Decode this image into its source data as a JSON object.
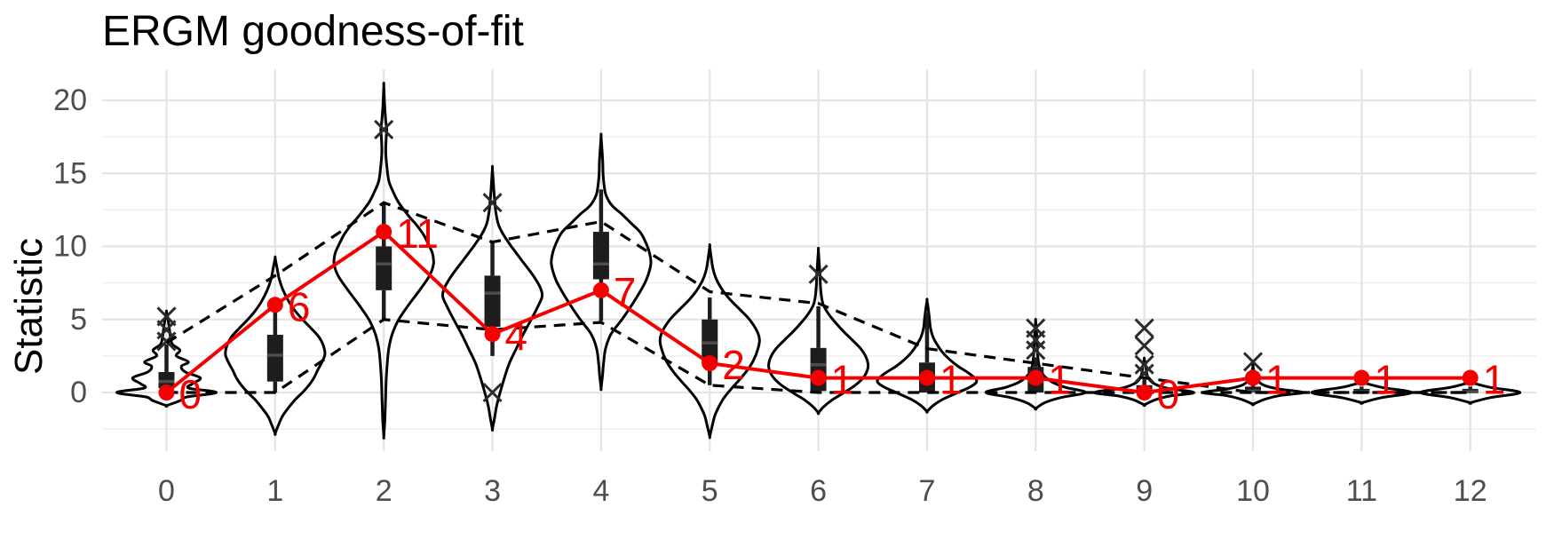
{
  "title": "ERGM goodness-of-fit",
  "y_axis_label": "Statistic",
  "colors": {
    "observed_red": "#F40000",
    "line_black": "#000000",
    "box_fill": "#1D1D1D",
    "median_gray": "#4D4D4D",
    "outlier_gray": "#2B2B2B",
    "grid_major": "#E4E4E4",
    "grid_minor": "#EFEFEF",
    "tick_text": "#4D4D4D",
    "background": "#FFFFFF"
  },
  "chart_data": {
    "type": "violin",
    "subtype": "ergm-gof: violins + boxplots + dashed 95% simulation band + observed line",
    "title": "ERGM goodness-of-fit",
    "xlabel": "",
    "ylabel": "Statistic",
    "categories": [
      "0",
      "1",
      "2",
      "3",
      "4",
      "5",
      "6",
      "7",
      "8",
      "9",
      "10",
      "11",
      "12"
    ],
    "y_ticks": [
      0,
      5,
      10,
      15,
      20
    ],
    "y_minor_ticks": [
      -2.5,
      2.5,
      7.5,
      12.5,
      17.5
    ],
    "ylim": [
      -3.6,
      21.8
    ],
    "grid": true,
    "legend_position": "none",
    "series": [
      {
        "name": "observed-statistic",
        "style": "solid red line with points and text labels",
        "values": [
          0,
          6,
          11,
          4,
          7,
          2,
          1,
          1,
          1,
          0,
          1,
          1,
          1
        ],
        "labels": [
          "0",
          "6",
          "11",
          "4",
          "7",
          "2",
          "1",
          "1",
          "1",
          "0",
          "1",
          "1",
          "1"
        ]
      },
      {
        "name": "upper-quantile-dashed",
        "style": "black dashed line",
        "values": [
          3.4,
          8,
          13,
          10.3,
          11.7,
          6.9,
          6.1,
          3,
          2,
          1,
          0,
          0,
          0
        ]
      },
      {
        "name": "lower-quantile-dashed",
        "style": "black dashed line",
        "values": [
          0,
          0,
          5,
          4.3,
          4.8,
          0.5,
          0,
          0,
          0,
          0,
          0,
          0,
          0
        ]
      }
    ],
    "boxplots": [
      {
        "q1": 0.3,
        "median": 0.75,
        "q3": 1.4,
        "lo": 0,
        "hi": 3.3,
        "outliers": [
          3.5,
          4.3,
          5.2
        ]
      },
      {
        "q1": 0.75,
        "median": 2.55,
        "q3": 3.95,
        "lo": 0,
        "hi": 5.5,
        "outliers": []
      },
      {
        "q1": 7,
        "median": 8.8,
        "q3": 10,
        "lo": 5,
        "hi": 13,
        "outliers": [
          18
        ]
      },
      {
        "q1": 4.5,
        "median": 6.8,
        "q3": 8,
        "lo": 2.5,
        "hi": 10.3,
        "outliers": [
          13,
          0
        ]
      },
      {
        "q1": 7.75,
        "median": 8.8,
        "q3": 11,
        "lo": 4.9,
        "hi": 13.9,
        "outliers": []
      },
      {
        "q1": 2,
        "median": 3.4,
        "q3": 5,
        "lo": 0.5,
        "hi": 6.5,
        "outliers": []
      },
      {
        "q1": 0.1,
        "median": 1.9,
        "q3": 3.05,
        "lo": 0,
        "hi": 5.9,
        "outliers": [
          8.1
        ]
      },
      {
        "q1": 0,
        "median": 1,
        "q3": 2.05,
        "lo": 0,
        "hi": 5.5,
        "outliers": []
      },
      {
        "q1": 0,
        "median": 0.75,
        "q3": 1.75,
        "lo": 0,
        "hi": 2.4,
        "outliers": [
          2.9,
          3.6,
          4.4
        ]
      },
      {
        "q1": 0,
        "median": 0.1,
        "q3": 0.5,
        "lo": 0,
        "hi": 0.9,
        "outliers": [
          1.3,
          1.9,
          3.2,
          4.4
        ]
      },
      {
        "q1": 0,
        "median": 0.1,
        "q3": 0.4,
        "lo": 0,
        "hi": 0.7,
        "outliers": [
          2.1
        ]
      },
      {
        "q1": 0,
        "median": 0.05,
        "q3": 0.25,
        "lo": 0,
        "hi": 0.4,
        "outliers": []
      },
      {
        "q1": 0,
        "median": 0.05,
        "q3": 0.25,
        "lo": 0,
        "hi": 0.4,
        "outliers": []
      }
    ],
    "violin_profiles": [
      [
        [
          -0.9,
          0
        ],
        [
          -0.55,
          0.28
        ],
        [
          -0.3,
          0.42
        ],
        [
          0,
          1
        ],
        [
          0.3,
          0.45
        ],
        [
          0.6,
          0.52
        ],
        [
          1,
          0.68
        ],
        [
          1.4,
          0.38
        ],
        [
          1.8,
          0.3
        ],
        [
          2.1,
          0.44
        ],
        [
          2.5,
          0.2
        ],
        [
          2.9,
          0.27
        ],
        [
          3.3,
          0.12
        ],
        [
          3.8,
          0.08
        ],
        [
          4.3,
          0.06
        ],
        [
          4.8,
          0.04
        ],
        [
          5.5,
          0
        ]
      ],
      [
        [
          -2.8,
          0
        ],
        [
          -2.2,
          0.07
        ],
        [
          -1.6,
          0.15
        ],
        [
          -1,
          0.28
        ],
        [
          -0.5,
          0.4
        ],
        [
          0,
          0.55
        ],
        [
          0.5,
          0.68
        ],
        [
          1,
          0.78
        ],
        [
          1.5,
          0.85
        ],
        [
          2,
          0.93
        ],
        [
          2.6,
          1
        ],
        [
          3.2,
          0.97
        ],
        [
          3.8,
          0.88
        ],
        [
          4.4,
          0.72
        ],
        [
          5,
          0.55
        ],
        [
          5.6,
          0.4
        ],
        [
          6.2,
          0.28
        ],
        [
          7,
          0.16
        ],
        [
          7.8,
          0.08
        ],
        [
          8.5,
          0.04
        ],
        [
          9.2,
          0
        ]
      ],
      [
        [
          -3,
          0
        ],
        [
          -2,
          0.02
        ],
        [
          -1,
          0.03
        ],
        [
          0,
          0.04
        ],
        [
          1,
          0.05
        ],
        [
          2,
          0.07
        ],
        [
          3,
          0.1
        ],
        [
          4,
          0.17
        ],
        [
          5,
          0.3
        ],
        [
          6,
          0.5
        ],
        [
          7,
          0.72
        ],
        [
          8,
          0.92
        ],
        [
          8.8,
          1
        ],
        [
          9.5,
          0.98
        ],
        [
          10,
          0.92
        ],
        [
          10.8,
          0.8
        ],
        [
          11.5,
          0.65
        ],
        [
          12,
          0.52
        ],
        [
          13,
          0.3
        ],
        [
          13.8,
          0.18
        ],
        [
          14.5,
          0.1
        ],
        [
          15.5,
          0.06
        ],
        [
          16.5,
          0.04
        ],
        [
          17.5,
          0.05
        ],
        [
          18,
          0.06
        ],
        [
          18.6,
          0.04
        ],
        [
          19.5,
          0.02
        ],
        [
          21,
          0
        ]
      ],
      [
        [
          -2.5,
          0
        ],
        [
          -1.8,
          0.04
        ],
        [
          -1,
          0.08
        ],
        [
          -0.3,
          0.13
        ],
        [
          0.3,
          0.18
        ],
        [
          1,
          0.24
        ],
        [
          2,
          0.34
        ],
        [
          3,
          0.48
        ],
        [
          4,
          0.62
        ],
        [
          5,
          0.78
        ],
        [
          6,
          0.93
        ],
        [
          6.6,
          1
        ],
        [
          7.2,
          0.96
        ],
        [
          8,
          0.82
        ],
        [
          9,
          0.6
        ],
        [
          10,
          0.38
        ],
        [
          10.8,
          0.22
        ],
        [
          11.5,
          0.12
        ],
        [
          12.3,
          0.07
        ],
        [
          13,
          0.05
        ],
        [
          13.8,
          0.03
        ],
        [
          15.3,
          0
        ]
      ],
      [
        [
          0.3,
          0
        ],
        [
          1.2,
          0.03
        ],
        [
          2,
          0.05
        ],
        [
          3,
          0.09
        ],
        [
          4,
          0.2
        ],
        [
          5,
          0.42
        ],
        [
          6,
          0.62
        ],
        [
          7,
          0.8
        ],
        [
          7.8,
          0.92
        ],
        [
          8.8,
          1
        ],
        [
          9.6,
          0.97
        ],
        [
          10.4,
          0.88
        ],
        [
          11,
          0.78
        ],
        [
          11.6,
          0.6
        ],
        [
          12.2,
          0.42
        ],
        [
          12.8,
          0.22
        ],
        [
          13.5,
          0.1
        ],
        [
          14.2,
          0.06
        ],
        [
          15,
          0.04
        ],
        [
          16,
          0.03
        ],
        [
          17.5,
          0
        ]
      ],
      [
        [
          -3,
          0
        ],
        [
          -2.3,
          0.05
        ],
        [
          -1.6,
          0.1
        ],
        [
          -1,
          0.18
        ],
        [
          -0.4,
          0.28
        ],
        [
          0.2,
          0.42
        ],
        [
          0.8,
          0.58
        ],
        [
          1.5,
          0.75
        ],
        [
          2.2,
          0.88
        ],
        [
          3,
          0.97
        ],
        [
          3.6,
          1
        ],
        [
          4.2,
          0.95
        ],
        [
          5,
          0.8
        ],
        [
          5.7,
          0.6
        ],
        [
          6.4,
          0.4
        ],
        [
          7,
          0.26
        ],
        [
          7.7,
          0.14
        ],
        [
          8.4,
          0.07
        ],
        [
          9,
          0.04
        ],
        [
          10,
          0
        ]
      ],
      [
        [
          -1.4,
          0
        ],
        [
          -1,
          0.1
        ],
        [
          -0.5,
          0.28
        ],
        [
          0,
          0.52
        ],
        [
          0.6,
          0.78
        ],
        [
          1.2,
          0.94
        ],
        [
          1.8,
          1
        ],
        [
          2.4,
          0.96
        ],
        [
          3,
          0.85
        ],
        [
          3.6,
          0.68
        ],
        [
          4.2,
          0.5
        ],
        [
          4.8,
          0.34
        ],
        [
          5.4,
          0.2
        ],
        [
          6,
          0.1
        ],
        [
          6.6,
          0.06
        ],
        [
          7.4,
          0.04
        ],
        [
          8.2,
          0.03
        ],
        [
          9.7,
          0
        ]
      ],
      [
        [
          -1.3,
          0
        ],
        [
          -0.9,
          0.12
        ],
        [
          -0.5,
          0.3
        ],
        [
          0,
          0.62
        ],
        [
          0.4,
          0.88
        ],
        [
          0.8,
          1
        ],
        [
          1.3,
          0.85
        ],
        [
          1.8,
          0.62
        ],
        [
          2.3,
          0.44
        ],
        [
          2.8,
          0.3
        ],
        [
          3.3,
          0.2
        ],
        [
          3.8,
          0.12
        ],
        [
          4.4,
          0.07
        ],
        [
          5,
          0.05
        ],
        [
          5.6,
          0.03
        ],
        [
          6.3,
          0
        ]
      ],
      [
        [
          -1.1,
          0
        ],
        [
          -0.7,
          0.18
        ],
        [
          -0.35,
          0.5
        ],
        [
          0,
          1
        ],
        [
          0.35,
          0.6
        ],
        [
          0.7,
          0.34
        ],
        [
          1.1,
          0.18
        ],
        [
          1.5,
          0.1
        ],
        [
          2,
          0.06
        ],
        [
          2.6,
          0.04
        ],
        [
          3.2,
          0.03
        ],
        [
          4,
          0.02
        ],
        [
          4.9,
          0
        ]
      ],
      [
        [
          -0.85,
          0
        ],
        [
          -0.5,
          0.22
        ],
        [
          -0.25,
          0.5
        ],
        [
          0,
          1
        ],
        [
          0.3,
          0.45
        ],
        [
          0.6,
          0.2
        ],
        [
          0.9,
          0.1
        ],
        [
          1.3,
          0.05
        ],
        [
          1.8,
          0.03
        ],
        [
          2.3,
          0
        ]
      ],
      [
        [
          -0.8,
          0
        ],
        [
          -0.45,
          0.25
        ],
        [
          -0.2,
          0.55
        ],
        [
          0,
          1
        ],
        [
          0.25,
          0.5
        ],
        [
          0.5,
          0.22
        ],
        [
          0.8,
          0.1
        ],
        [
          1.2,
          0.04
        ],
        [
          1.8,
          0
        ]
      ],
      [
        [
          -0.7,
          0
        ],
        [
          -0.35,
          0.4
        ],
        [
          0,
          1
        ],
        [
          0.35,
          0.4
        ],
        [
          0.7,
          0
        ]
      ],
      [
        [
          -0.7,
          0
        ],
        [
          -0.35,
          0.4
        ],
        [
          0,
          1
        ],
        [
          0.35,
          0.4
        ],
        [
          0.7,
          0
        ]
      ]
    ]
  }
}
